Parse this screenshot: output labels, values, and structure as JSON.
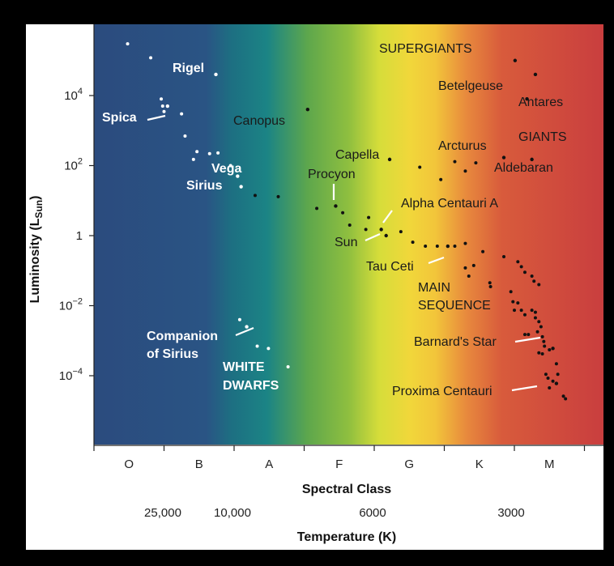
{
  "chart_data": {
    "type": "scatter",
    "title": "",
    "ylabel": "Luminosity (L",
    "ylabel_sub": "Sun",
    "ylabel_close": ")",
    "xlabel": "Spectral Class",
    "x2label": "Temperature (K)",
    "y_scale": "log",
    "ylim": [
      1e-06,
      1000000.0
    ],
    "y_ticks": [
      {
        "base": "10",
        "exp": "4",
        "value": 10000
      },
      {
        "base": "10",
        "exp": "2",
        "value": 100
      },
      {
        "base": "1",
        "exp": "",
        "value": 1
      },
      {
        "base": "10",
        "exp": "−2",
        "value": 0.01
      },
      {
        "base": "10",
        "exp": "−4",
        "value": 0.0001
      }
    ],
    "spectral_classes": [
      "O",
      "B",
      "A",
      "F",
      "G",
      "K",
      "M"
    ],
    "temperature_ticks": [
      "25,000",
      "10,000",
      "6000",
      "3000"
    ],
    "background_colors": [
      "#2a4a7f",
      "#1a7a84",
      "#7ab342",
      "#f2d93a",
      "#e78a3e",
      "#c93e3e"
    ],
    "grid": false,
    "stars": [
      {
        "name": "Rigel",
        "cls": 1.74,
        "lum": 40000
      },
      {
        "name": "Spica",
        "cls": 1.05,
        "lum": 5000
      },
      {
        "name": "Vega",
        "cls": 2.05,
        "lum": 50
      },
      {
        "name": "Sirius",
        "cls": 2.1,
        "lum": 25
      },
      {
        "name": "Canopus",
        "cls": 3.05,
        "lum": 4000
      },
      {
        "name": "Procyon",
        "cls": 3.45,
        "lum": 7
      },
      {
        "name": "Capella",
        "cls": 4.22,
        "lum": 150
      },
      {
        "name": "Sun",
        "cls": 4.17,
        "lum": 1
      },
      {
        "name": "Alpha Centauri A",
        "cls": 4.1,
        "lum": 1.5
      },
      {
        "name": "Tau Ceti",
        "cls": 5.05,
        "lum": 0.5
      },
      {
        "name": "Arcturus",
        "cls": 5.85,
        "lum": 170
      },
      {
        "name": "Aldebaran",
        "cls": 6.25,
        "lum": 150
      },
      {
        "name": "Betelgeuse",
        "cls": 6.3,
        "lum": 40000
      },
      {
        "name": "Antares",
        "cls": 6.18,
        "lum": 8000
      },
      {
        "name": "SUPERGIANTS",
        "cls": 6.01,
        "lum": 100000
      },
      {
        "name": "Barnard's Star",
        "cls": 6.55,
        "lum": 0.0006
      },
      {
        "name": "Proxima Centauri",
        "cls": 6.6,
        "lum": 6e-05
      },
      {
        "name": "Companion of Sirius",
        "cls": 2.18,
        "lum": 0.0025
      }
    ],
    "white_dots": [
      [
        0.48,
        300000
      ],
      [
        0.81,
        120000
      ],
      [
        0.96,
        8000
      ],
      [
        0.98,
        5000
      ],
      [
        1.0,
        3500
      ],
      [
        1.25,
        3000
      ],
      [
        1.3,
        700
      ],
      [
        1.42,
        150
      ],
      [
        1.47,
        250
      ],
      [
        1.65,
        220
      ],
      [
        1.77,
        230
      ],
      [
        1.95,
        100
      ],
      [
        2.08,
        0.004
      ],
      [
        2.33,
        0.0007
      ],
      [
        2.49,
        0.0006
      ],
      [
        2.77,
        0.00018
      ]
    ],
    "black_dots": [
      [
        2.3,
        14
      ],
      [
        2.63,
        13
      ],
      [
        3.18,
        6
      ],
      [
        3.55,
        4.5
      ],
      [
        3.65,
        2
      ],
      [
        3.92,
        3.3
      ],
      [
        3.88,
        1.5
      ],
      [
        4.38,
        1.3
      ],
      [
        4.55,
        0.65
      ],
      [
        4.73,
        0.5
      ],
      [
        4.9,
        0.5
      ],
      [
        5.3,
        0.12
      ],
      [
        5.35,
        0.07
      ],
      [
        5.42,
        0.14
      ],
      [
        5.65,
        0.045
      ],
      [
        5.66,
        0.035
      ],
      [
        5.95,
        0.025
      ],
      [
        5.98,
        0.013
      ],
      [
        6.05,
        0.012
      ],
      [
        6.0,
        0.0074
      ],
      [
        6.1,
        0.0074
      ],
      [
        6.15,
        0.0055
      ],
      [
        6.25,
        0.0074
      ],
      [
        6.3,
        0.0065
      ],
      [
        6.3,
        0.0045
      ],
      [
        6.35,
        0.0035
      ],
      [
        6.38,
        0.0025
      ],
      [
        6.33,
        0.0018
      ],
      [
        6.15,
        0.0015
      ],
      [
        6.2,
        0.0015
      ],
      [
        6.4,
        0.0013
      ],
      [
        6.42,
        0.00095
      ],
      [
        6.43,
        0.0007
      ],
      [
        6.5,
        0.00055
      ],
      [
        6.35,
        0.00045
      ],
      [
        6.4,
        0.00042
      ],
      [
        6.6,
        0.00022
      ],
      [
        6.45,
        0.00011
      ],
      [
        6.48,
        8.5e-05
      ],
      [
        6.55,
        7e-05
      ],
      [
        6.62,
        0.00011
      ],
      [
        6.5,
        4.5e-05
      ],
      [
        6.7,
        2.6e-05
      ],
      [
        6.73,
        2.2e-05
      ],
      [
        5.15,
        0.5
      ],
      [
        5.3,
        0.6
      ],
      [
        5.55,
        0.35
      ],
      [
        5.85,
        0.25
      ],
      [
        6.05,
        0.18
      ],
      [
        6.1,
        0.13
      ],
      [
        6.15,
        0.09
      ],
      [
        6.25,
        0.07
      ],
      [
        6.28,
        0.05
      ],
      [
        6.35,
        0.04
      ],
      [
        4.65,
        90
      ],
      [
        4.95,
        40
      ],
      [
        5.15,
        130
      ],
      [
        5.3,
        70
      ],
      [
        5.45,
        120
      ]
    ],
    "annotations": {
      "supergiants": "SUPERGIANTS",
      "rigel": "Rigel",
      "betelgeuse": "Betelgeuse",
      "antares": "Antares",
      "spica": "Spica",
      "canopus": "Canopus",
      "giants": "GIANTS",
      "arcturus": "Arcturus",
      "capella": "Capella",
      "aldebaran": "Aldebaran",
      "procyon": "Procyon",
      "vega": "Vega",
      "sirius": "Sirius",
      "alpha_centauri": "Alpha Centauri A",
      "sun": "Sun",
      "tau_ceti": "Tau Ceti",
      "main_seq_1": "MAIN",
      "main_seq_2": "SEQUENCE",
      "companion_1": "Companion",
      "companion_2": "of Sirius",
      "white_dwarfs_1": "WHITE",
      "white_dwarfs_2": "DWARFS",
      "barnard": "Barnard's Star",
      "proxima": "Proxima Centauri"
    }
  }
}
